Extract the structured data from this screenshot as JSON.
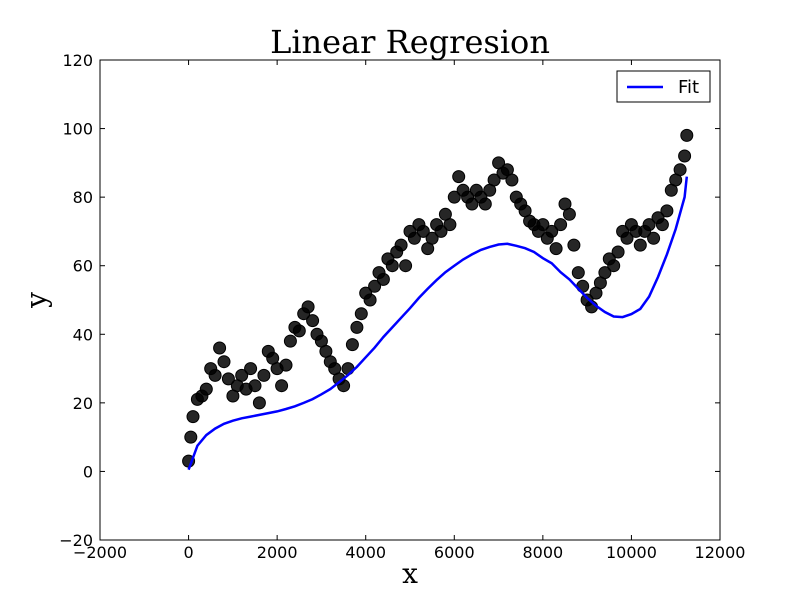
{
  "chart_data": {
    "type": "scatter",
    "title": "Linear Regresion",
    "xlabel": "x",
    "ylabel": "y",
    "xlim": [
      -2000,
      12000
    ],
    "ylim": [
      -20,
      120
    ],
    "xticks": [
      "−2000",
      "0",
      "2000",
      "4000",
      "6000",
      "8000",
      "10000",
      "12000"
    ],
    "yticks": [
      "−20",
      "0",
      "20",
      "40",
      "60",
      "80",
      "100",
      "120"
    ],
    "grid": false,
    "legend": {
      "position": "top-right",
      "entries": [
        "Fit"
      ]
    },
    "colors": {
      "data": "#000000",
      "fit": "#0000ff"
    },
    "series": [
      {
        "kind": "scatter",
        "x": [
          0,
          50,
          100,
          200,
          300,
          400,
          500,
          600,
          700,
          800,
          900,
          1000,
          1100,
          1200,
          1300,
          1400,
          1500,
          1600,
          1700,
          1800,
          1900,
          2000,
          2100,
          2200,
          2300,
          2400,
          2500,
          2600,
          2700,
          2800,
          2900,
          3000,
          3100,
          3200,
          3300,
          3400,
          3500,
          3600,
          3700,
          3800,
          3900,
          4000,
          4100,
          4200,
          4300,
          4400,
          4500,
          4600,
          4700,
          4800,
          4900,
          5000,
          5100,
          5200,
          5300,
          5400,
          5500,
          5600,
          5700,
          5800,
          5900,
          6000,
          6100,
          6200,
          6300,
          6400,
          6500,
          6600,
          6700,
          6800,
          6900,
          7000,
          7100,
          7200,
          7300,
          7400,
          7500,
          7600,
          7700,
          7800,
          7900,
          8000,
          8100,
          8200,
          8300,
          8400,
          8500,
          8600,
          8700,
          8800,
          8900,
          9000,
          9100,
          9200,
          9300,
          9400,
          9500,
          9600,
          9700,
          9800,
          9900,
          10000,
          10100,
          10200,
          10300,
          10400,
          10500,
          10600,
          10700,
          10800,
          10900,
          11000,
          11100,
          11200,
          11250
        ],
        "y": [
          3,
          10,
          16,
          21,
          22,
          24,
          30,
          28,
          36,
          32,
          27,
          22,
          25,
          28,
          24,
          30,
          25,
          20,
          28,
          35,
          33,
          30,
          25,
          31,
          38,
          42,
          41,
          46,
          48,
          44,
          40,
          38,
          35,
          32,
          30,
          27,
          25,
          30,
          37,
          42,
          46,
          52,
          50,
          54,
          58,
          56,
          62,
          60,
          64,
          66,
          60,
          70,
          68,
          72,
          70,
          65,
          68,
          72,
          70,
          75,
          72,
          80,
          86,
          82,
          80,
          78,
          82,
          80,
          78,
          82,
          85,
          90,
          87,
          88,
          85,
          80,
          78,
          76,
          73,
          72,
          70,
          72,
          68,
          70,
          65,
          72,
          78,
          75,
          66,
          58,
          54,
          50,
          48,
          52,
          55,
          58,
          62,
          60,
          64,
          70,
          68,
          72,
          70,
          66,
          70,
          72,
          68,
          74,
          72,
          76,
          82,
          85,
          88,
          92,
          98
        ]
      },
      {
        "name": "Fit",
        "kind": "line",
        "x": [
          0,
          200,
          400,
          600,
          800,
          1000,
          1200,
          1400,
          1600,
          1800,
          2000,
          2200,
          2400,
          2600,
          2800,
          3000,
          3200,
          3400,
          3600,
          3800,
          4000,
          4200,
          4400,
          4600,
          4800,
          5000,
          5200,
          5400,
          5600,
          5800,
          6000,
          6200,
          6400,
          6600,
          6800,
          7000,
          7200,
          7400,
          7600,
          7800,
          8000,
          8200,
          8400,
          8600,
          8800,
          9000,
          9200,
          9400,
          9600,
          9800,
          10000,
          10200,
          10400,
          10600,
          10800,
          11000,
          11200,
          11250
        ],
        "y": [
          0.5,
          7.5,
          10.6,
          12.5,
          13.9,
          14.8,
          15.5,
          16.0,
          16.5,
          17.0,
          17.5,
          18.2,
          19.0,
          20.0,
          21.1,
          22.5,
          24.0,
          26.0,
          28.1,
          30.5,
          33.3,
          36.1,
          39.2,
          42.0,
          44.8,
          47.6,
          50.6,
          53.3,
          55.8,
          58.1,
          60.0,
          61.8,
          63.3,
          64.6,
          65.5,
          66.2,
          66.4,
          65.8,
          65.1,
          64.0,
          62.2,
          60.7,
          58.1,
          56.0,
          53.3,
          50.6,
          48.3,
          46.5,
          45.2,
          45.0,
          45.9,
          47.4,
          51.0,
          56.7,
          63.3,
          70.7,
          80.0,
          86.0
        ]
      }
    ]
  }
}
